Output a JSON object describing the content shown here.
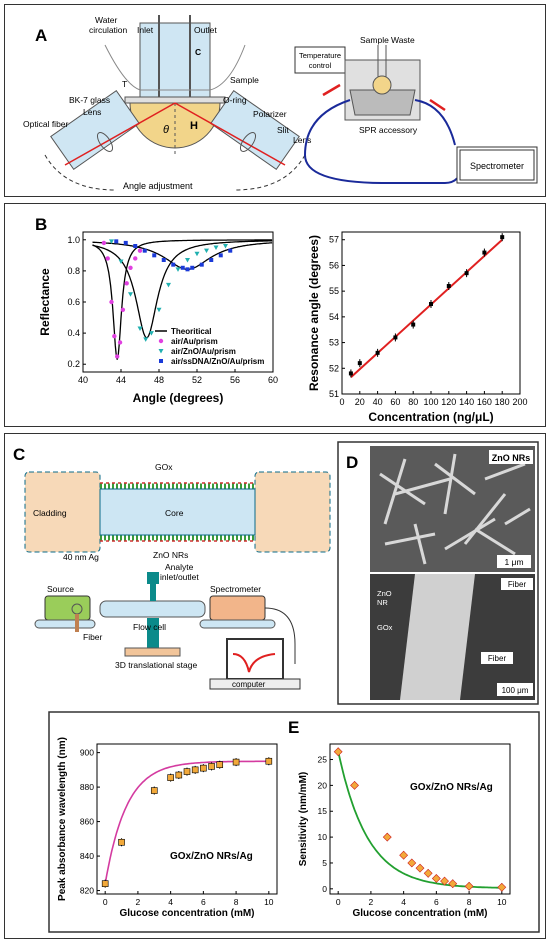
{
  "panels": {
    "A": {
      "letter": "A",
      "labels": {
        "water": "Water",
        "circulation": "circulation",
        "inlet": "Inlet",
        "outlet": "Outlet",
        "c": "C",
        "t": "T",
        "sample": "Sample",
        "bk7": "BK-7 glass",
        "oring": "O-ring",
        "polarizer": "Polarizer",
        "optical_fiber": "Optical fiber",
        "lens_left": "Lens",
        "slit": "Slit",
        "lens_right": "Lens",
        "theta": "θ",
        "h": "H",
        "angle_adjustment": "Angle adjustment",
        "temperature": "Temperature",
        "control": "control",
        "sample_waste": "Sample",
        "waste": "Waste",
        "spr": "SPR accessory",
        "spectrometer": "Spectrometer"
      }
    },
    "B": {
      "letter": "B"
    },
    "C": {
      "letter": "C",
      "labels": {
        "gox": "GOx",
        "cladding": "Cladding",
        "core": "Core",
        "ag": "40 nm Ag",
        "zno": "ZnO NRs",
        "analyte1": "Analyte",
        "analyte2": "inlet/outlet",
        "source": "Source",
        "spectrometer": "Spectrometer",
        "flowcell": "Flow cell",
        "fiber": "Fiber",
        "stage": "3D translational stage",
        "computer": "computer"
      }
    },
    "D": {
      "letter": "D",
      "labels": {
        "zno_title": "ZnO NRs",
        "scale1": "1 μm",
        "zno_nr1": "ZnO",
        "zno_nr2": "NR",
        "gox": "GOx",
        "fiber1": "Fiber",
        "fiber2": "Fiber",
        "scale2": "100 μm"
      }
    },
    "E": {
      "letter": "E"
    }
  },
  "chart_data": [
    {
      "id": "B-left",
      "type": "line",
      "xlabel": "Angle (degrees)",
      "ylabel": "Reflectance",
      "xlim": [
        40,
        60
      ],
      "ylim": [
        0.15,
        1.05
      ],
      "xticks": [
        40,
        44,
        48,
        52,
        56,
        60
      ],
      "yticks": [
        0.2,
        0.4,
        0.6,
        0.8,
        1.0
      ],
      "legend_position": "bottom-right",
      "series": [
        {
          "name": "Theoritical",
          "style": "line",
          "color": "#000000"
        },
        {
          "name": "air/Au/prism",
          "style": "marker",
          "color": "#e040e0",
          "points": [
            [
              42.2,
              0.98
            ],
            [
              42.6,
              0.88
            ],
            [
              43.0,
              0.6
            ],
            [
              43.3,
              0.38
            ],
            [
              43.6,
              0.25
            ],
            [
              43.9,
              0.34
            ],
            [
              44.2,
              0.55
            ],
            [
              44.6,
              0.72
            ],
            [
              45.0,
              0.82
            ],
            [
              45.5,
              0.88
            ],
            [
              46.0,
              0.93
            ]
          ]
        },
        {
          "name": "air/ZnO/Au/prism",
          "style": "marker",
          "color": "#20b0b0",
          "points": [
            [
              43.0,
              0.99
            ],
            [
              44.0,
              0.86
            ],
            [
              45.0,
              0.65
            ],
            [
              46.0,
              0.43
            ],
            [
              46.6,
              0.36
            ],
            [
              47.2,
              0.4
            ],
            [
              48.0,
              0.55
            ],
            [
              49.0,
              0.71
            ],
            [
              50.0,
              0.81
            ],
            [
              51.0,
              0.87
            ],
            [
              52.0,
              0.91
            ],
            [
              53.0,
              0.93
            ],
            [
              54.0,
              0.95
            ],
            [
              55.0,
              0.96
            ]
          ]
        },
        {
          "name": "air/ssDNA/ZnO/Au/prism",
          "style": "marker",
          "color": "#1a3ad8",
          "points": [
            [
              43.5,
              0.99
            ],
            [
              44.5,
              0.98
            ],
            [
              45.5,
              0.96
            ],
            [
              46.5,
              0.93
            ],
            [
              47.5,
              0.9
            ],
            [
              48.5,
              0.87
            ],
            [
              49.5,
              0.84
            ],
            [
              50.5,
              0.82
            ],
            [
              51.0,
              0.81
            ],
            [
              51.5,
              0.82
            ],
            [
              52.5,
              0.84
            ],
            [
              53.5,
              0.87
            ],
            [
              54.5,
              0.9
            ],
            [
              55.5,
              0.93
            ]
          ]
        }
      ]
    },
    {
      "id": "B-right",
      "type": "scatter",
      "xlabel": "Concentration (ng/μL)",
      "ylabel": "Resonance angle (degrees)",
      "xlim": [
        0,
        200
      ],
      "ylim": [
        51,
        57.3
      ],
      "xticks": [
        0,
        20,
        40,
        60,
        80,
        100,
        120,
        140,
        160,
        180,
        200
      ],
      "yticks": [
        51,
        52,
        53,
        54,
        55,
        56,
        57
      ],
      "x": [
        10,
        20,
        40,
        60,
        80,
        100,
        120,
        140,
        160,
        180
      ],
      "y": [
        51.8,
        52.2,
        52.6,
        53.2,
        53.7,
        54.5,
        55.2,
        55.7,
        56.5,
        57.1
      ],
      "fit": {
        "x": [
          10,
          180
        ],
        "y": [
          51.65,
          57.0
        ],
        "color": "#e02020"
      }
    },
    {
      "id": "E-left",
      "type": "line",
      "xlabel": "Glucose concentration (mM)",
      "ylabel": "Peak absorbance wavelength (nm)",
      "annotation": "GOx/ZnO NRs/Ag",
      "xlim": [
        -0.5,
        10.5
      ],
      "ylim": [
        818,
        905
      ],
      "xticks": [
        0,
        2,
        4,
        6,
        8,
        10
      ],
      "yticks": [
        820,
        840,
        860,
        880,
        900
      ],
      "x": [
        0,
        1,
        3,
        4,
        4.5,
        5,
        5.5,
        6,
        6.5,
        7,
        8,
        10
      ],
      "y": [
        824,
        848,
        878,
        885.5,
        887,
        889,
        890,
        891,
        892,
        893,
        894.5,
        895
      ],
      "color": "#d43ba0"
    },
    {
      "id": "E-right",
      "type": "line",
      "xlabel": "Glucose concentration (mM)",
      "ylabel": "Sensitivity (nm/mM)",
      "annotation": "GOx/ZnO NRs/Ag",
      "xlim": [
        -0.5,
        10.5
      ],
      "ylim": [
        -1,
        28
      ],
      "xticks": [
        0,
        2,
        4,
        6,
        8,
        10
      ],
      "yticks": [
        0,
        5,
        10,
        15,
        20,
        25
      ],
      "x": [
        0,
        1,
        3,
        4,
        4.5,
        5,
        5.5,
        6,
        6.5,
        7,
        8,
        10
      ],
      "y": [
        26.5,
        20,
        10,
        6.5,
        5,
        4,
        3,
        2,
        1.5,
        1,
        0.5,
        0.3
      ],
      "color": "#22a030"
    }
  ]
}
